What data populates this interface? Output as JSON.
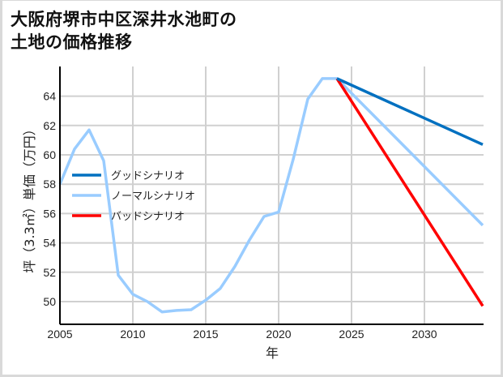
{
  "title": {
    "line1": "大阪府堺市中区深井水池町の",
    "line2": "土地の価格推移"
  },
  "legend": [
    {
      "label": "グッドシナリオ",
      "color": "#0070c0"
    },
    {
      "label": "ノーマルシナリオ",
      "color": "#99ccff"
    },
    {
      "label": "バッドシナリオ",
      "color": "#ff0000"
    }
  ],
  "axes": {
    "xlabel": "年",
    "ylabel": "坪（3.3㎡）単価（万円）",
    "xticks": [
      "2005",
      "2010",
      "2015",
      "2020",
      "2025",
      "2030"
    ],
    "yticks": [
      "50",
      "52",
      "54",
      "56",
      "58",
      "60",
      "62",
      "64"
    ]
  },
  "chart_data": {
    "type": "line",
    "title": "大阪府堺市中区深井水池町の土地の価格推移",
    "xlabel": "年",
    "ylabel": "坪（3.3㎡）単価（万円）",
    "xlim": [
      2005,
      2034
    ],
    "ylim": [
      48.5,
      66.2
    ],
    "grid": true,
    "legend_position": "upper-left (inside)",
    "series": [
      {
        "name": "ノーマルシナリオ",
        "color": "#99ccff",
        "x": [
          2005,
          2006,
          2007,
          2008,
          2009,
          2010,
          2011,
          2012,
          2013,
          2014,
          2015,
          2016,
          2017,
          2018,
          2019,
          2020,
          2021,
          2022,
          2023,
          2024,
          2034
        ],
        "values": [
          58.0,
          60.4,
          61.7,
          59.6,
          51.8,
          50.5,
          50.0,
          49.3,
          49.4,
          49.45,
          50.1,
          50.9,
          52.4,
          54.2,
          55.8,
          56.1,
          59.7,
          63.8,
          65.2,
          65.2,
          55.2
        ]
      },
      {
        "name": "グッドシナリオ",
        "color": "#0070c0",
        "x": [
          2024,
          2034
        ],
        "values": [
          65.2,
          60.7
        ]
      },
      {
        "name": "バッドシナリオ",
        "color": "#ff0000",
        "x": [
          2024,
          2034
        ],
        "values": [
          65.2,
          49.7
        ]
      }
    ]
  }
}
